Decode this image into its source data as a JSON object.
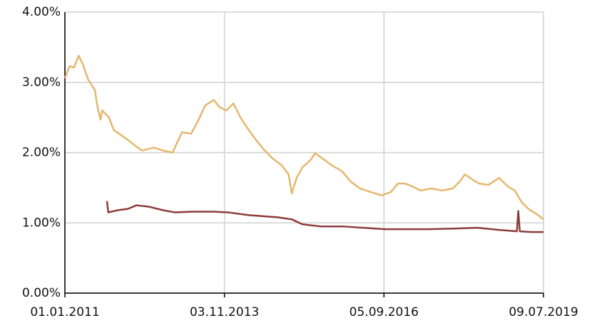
{
  "chart_data": {
    "type": "line",
    "xlim": [
      "01.01.2011",
      "09.07.2019"
    ],
    "xticks": [
      "01.01.2011",
      "03.11.2013",
      "05.09.2016",
      "09.07.2019"
    ],
    "ylim": [
      0,
      4
    ],
    "yticks": [
      {
        "value": 0,
        "label": "0.00%"
      },
      {
        "value": 1,
        "label": "1.00%"
      },
      {
        "value": 2,
        "label": "2.00%"
      },
      {
        "value": 3,
        "label": "3.00%"
      },
      {
        "value": 4,
        "label": "4.00%"
      }
    ],
    "grid": true,
    "series": [
      {
        "color": "#e5b76c",
        "x": [
          "01.01.2011",
          "01.02.2011",
          "01.03.2011",
          "01.04.2011",
          "01.05.2011",
          "01.06.2011",
          "15.07.2011",
          "01.08.2011",
          "20.08.2011",
          "01.09.2011",
          "15.10.2011",
          "15.11.2011",
          "01.01.2012",
          "15.02.2012",
          "01.04.2012",
          "15.05.2012",
          "01.08.2012",
          "01.10.2012",
          "01.12.2012",
          "01.01.2013",
          "01.02.2013",
          "01.04.2013",
          "15.05.2013",
          "01.07.2013",
          "25.08.2013",
          "01.10.2013",
          "15.11.2013",
          "01.01.2014",
          "15.02.2014",
          "01.04.2014",
          "20.05.2014",
          "15.07.2014",
          "10.09.2014",
          "10.11.2014",
          "25.12.2014",
          "15.01.2015",
          "15.02.2015",
          "25.03.2015",
          "15.05.2015",
          "15.06.2015",
          "01.08.2015",
          "01.10.2015",
          "05.12.2015",
          "01.02.2016",
          "01.04.2016",
          "10.06.2016",
          "20.08.2016",
          "20.10.2016",
          "05.12.2016",
          "20.01.2017",
          "07.03.2017",
          "01.05.2017",
          "10.07.2017",
          "17.09.2017",
          "26.11.2017",
          "11.01.2018",
          "13.02.2018",
          "01.04.2018",
          "16.05.2018",
          "16.07.2018",
          "23.09.2018",
          "18.11.2018",
          "03.01.2019",
          "19.02.2019",
          "07.04.2019",
          "23.05.2019",
          "09.07.2019"
        ],
        "values": [
          3.06,
          3.23,
          3.21,
          3.38,
          3.24,
          3.04,
          2.89,
          2.65,
          2.47,
          2.6,
          2.5,
          2.32,
          2.25,
          2.18,
          2.1,
          2.03,
          2.07,
          2.03,
          2.0,
          2.15,
          2.29,
          2.27,
          2.45,
          2.67,
          2.75,
          2.65,
          2.6,
          2.7,
          2.5,
          2.35,
          2.2,
          2.05,
          1.92,
          1.82,
          1.69,
          1.42,
          1.64,
          1.79,
          1.89,
          1.99,
          1.92,
          1.82,
          1.74,
          1.59,
          1.49,
          1.44,
          1.39,
          1.44,
          1.56,
          1.56,
          1.52,
          1.46,
          1.49,
          1.46,
          1.49,
          1.59,
          1.69,
          1.62,
          1.56,
          1.54,
          1.64,
          1.52,
          1.46,
          1.29,
          1.19,
          1.13,
          1.05
        ]
      },
      {
        "color": "#8c3b3b",
        "x": [
          "01.10.2011",
          "10.10.2011",
          "10.12.2011",
          "15.02.2012",
          "10.04.2012",
          "01.07.2012",
          "01.10.2012",
          "15.12.2012",
          "10.04.2013",
          "25.08.2013",
          "25.11.2013",
          "10.04.2014",
          "15.10.2014",
          "15.01.2015",
          "25.03.2015",
          "20.07.2015",
          "05.12.2015",
          "25.04.2016",
          "12.09.2016",
          "30.01.2017",
          "17.06.2017",
          "19.12.2017",
          "07.05.2018",
          "23.09.2018",
          "17.01.2019",
          "26.01.2019",
          "05.02.2019",
          "21.04.2019",
          "09.07.2019"
        ],
        "values": [
          1.31,
          1.15,
          1.18,
          1.2,
          1.25,
          1.23,
          1.18,
          1.15,
          1.16,
          1.16,
          1.15,
          1.11,
          1.08,
          1.05,
          0.98,
          0.95,
          0.95,
          0.93,
          0.91,
          0.91,
          0.91,
          0.92,
          0.93,
          0.9,
          0.88,
          1.17,
          0.88,
          0.87,
          0.87
        ]
      }
    ]
  }
}
